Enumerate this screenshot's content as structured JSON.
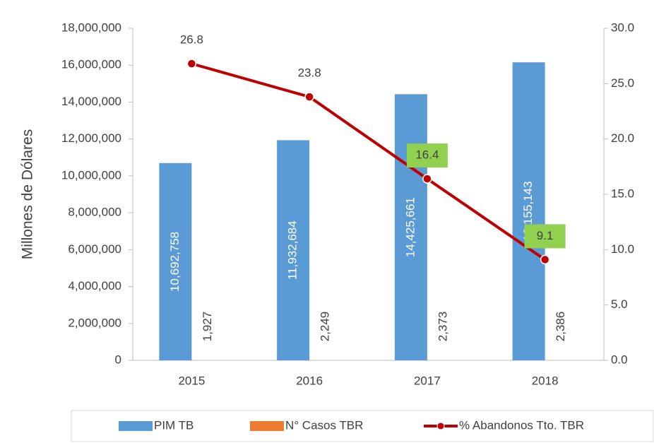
{
  "chart_data": {
    "type": "combo",
    "y_axis_label": "Millones de Dólares",
    "categories": [
      "2015",
      "2016",
      "2017",
      "2018"
    ],
    "series": [
      {
        "name": "PIM TB",
        "type": "bar",
        "color": "#5b9bd5",
        "values": [
          10692758,
          11932684,
          14425661,
          16155143
        ],
        "value_labels": [
          "10,692,758",
          "11,932,684",
          "14,425,661",
          "16,155,143"
        ]
      },
      {
        "name": "N° Casos TBR",
        "type": "bar",
        "color": "#ed7d31",
        "values": [
          1927,
          2249,
          2373,
          2386
        ],
        "value_labels": [
          "1,927",
          "2,249",
          "2,373",
          "2,386"
        ]
      },
      {
        "name": "% Abandonos Tto. TBR",
        "type": "line",
        "axis": "y2",
        "color": "#c00000",
        "values": [
          26.8,
          23.8,
          16.4,
          9.1
        ]
      }
    ],
    "ylim": [
      0,
      18000000
    ],
    "yticks": [
      0,
      {
        "value": 2000000,
        "label": "2,000,000"
      },
      {
        "value": 4000000,
        "label": "4,000,000"
      },
      {
        "value": 6000000,
        "label": "6,000,000"
      },
      {
        "value": 8000000,
        "label": "8,000,000"
      },
      {
        "value": 10000000,
        "label": "10,000,000"
      },
      {
        "value": 12000000,
        "label": "12,000,000"
      },
      {
        "value": 14000000,
        "label": "14,000,000"
      },
      {
        "value": 16000000,
        "label": "16,000,000"
      },
      {
        "value": 18000000,
        "label": "18,000,000"
      }
    ],
    "y2lim": [
      0,
      30
    ],
    "y2ticks": [
      {
        "value": 0,
        "label": "0.0"
      },
      {
        "value": 5,
        "label": "5.0"
      },
      {
        "value": 10,
        "label": "10.0"
      },
      {
        "value": 15,
        "label": "15.0"
      },
      {
        "value": 20,
        "label": "20.0"
      },
      {
        "value": 25,
        "label": "25.0"
      },
      {
        "value": 30,
        "label": "30.0"
      }
    ],
    "legend": "bottom",
    "grid": false
  }
}
